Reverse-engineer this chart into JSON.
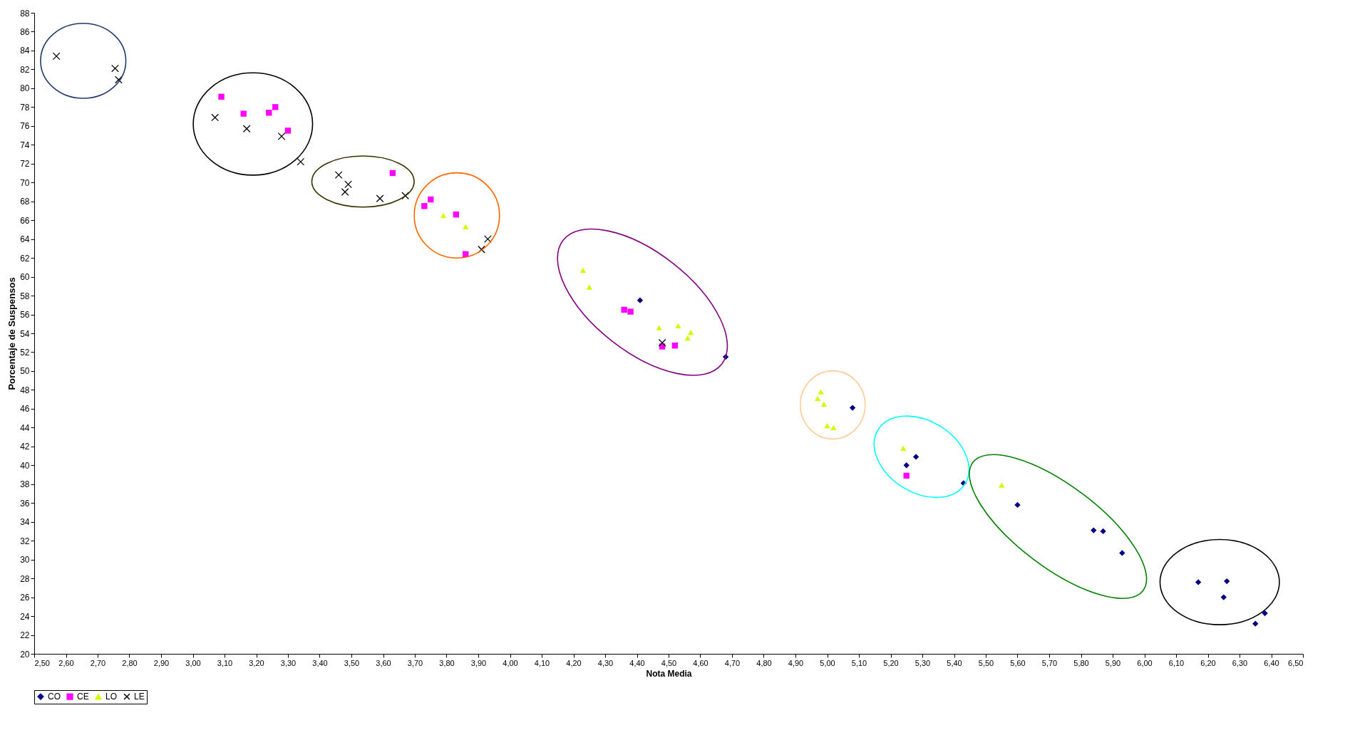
{
  "chart_data": {
    "type": "scatter",
    "xlabel": "Nota Media",
    "ylabel": "Porcentaje de Suspensos",
    "xlim": [
      2.5,
      6.5
    ],
    "xticks": [
      {
        "value": 2.5,
        "label": "2,50"
      },
      {
        "value": 2.6,
        "label": "2,60"
      },
      {
        "value": 2.7,
        "label": "2,70"
      },
      {
        "value": 2.8,
        "label": "2,80"
      },
      {
        "value": 2.9,
        "label": "2,90"
      },
      {
        "value": 3.0,
        "label": "3,00"
      },
      {
        "value": 3.1,
        "label": "3,10"
      },
      {
        "value": 3.2,
        "label": "3,20"
      },
      {
        "value": 3.3,
        "label": "3,30"
      },
      {
        "value": 3.4,
        "label": "3,40"
      },
      {
        "value": 3.5,
        "label": "3,50"
      },
      {
        "value": 3.6,
        "label": "3,60"
      },
      {
        "value": 3.7,
        "label": "3,70"
      },
      {
        "value": 3.8,
        "label": "3,80"
      },
      {
        "value": 3.9,
        "label": "3,90"
      },
      {
        "value": 4.0,
        "label": "4,00"
      },
      {
        "value": 4.1,
        "label": "4,10"
      },
      {
        "value": 4.2,
        "label": "4,20"
      },
      {
        "value": 4.3,
        "label": "4,30"
      },
      {
        "value": 4.4,
        "label": "4,40"
      },
      {
        "value": 4.5,
        "label": "4,50"
      },
      {
        "value": 4.6,
        "label": "4,60"
      },
      {
        "value": 4.7,
        "label": "4,70"
      },
      {
        "value": 4.8,
        "label": "4,80"
      },
      {
        "value": 4.9,
        "label": "4,90"
      },
      {
        "value": 5.0,
        "label": "5,00"
      },
      {
        "value": 5.1,
        "label": "5,10"
      },
      {
        "value": 5.2,
        "label": "5,20"
      },
      {
        "value": 5.3,
        "label": "5,30"
      },
      {
        "value": 5.4,
        "label": "5,40"
      },
      {
        "value": 5.5,
        "label": "5,50"
      },
      {
        "value": 5.6,
        "label": "5,60"
      },
      {
        "value": 5.7,
        "label": "5,70"
      },
      {
        "value": 5.8,
        "label": "5,80"
      },
      {
        "value": 5.9,
        "label": "5,90"
      },
      {
        "value": 6.0,
        "label": "6,00"
      },
      {
        "value": 6.1,
        "label": "6,10"
      },
      {
        "value": 6.2,
        "label": "6,20"
      },
      {
        "value": 6.3,
        "label": "6,30"
      },
      {
        "value": 6.4,
        "label": "6,40"
      },
      {
        "value": 6.5,
        "label": "6,50"
      }
    ],
    "ylim": [
      20,
      88
    ],
    "yticks": [
      20,
      22,
      24,
      26,
      28,
      30,
      32,
      34,
      36,
      38,
      40,
      42,
      44,
      46,
      48,
      50,
      52,
      54,
      56,
      58,
      60,
      62,
      64,
      66,
      68,
      70,
      72,
      74,
      76,
      78,
      80,
      82,
      84,
      86,
      88
    ],
    "grid": false,
    "legend": "bottom",
    "series": [
      {
        "name": "CO",
        "color": "#000080",
        "marker": "diamond",
        "x": [
          4.41,
          4.68,
          5.08,
          5.28,
          5.25,
          5.43,
          5.6,
          5.84,
          5.87,
          5.93,
          6.17,
          6.26,
          6.25,
          6.38,
          6.35
        ],
        "values": [
          57.5,
          51.5,
          46.1,
          40.9,
          40.0,
          38.1,
          35.8,
          33.1,
          33.0,
          30.7,
          27.6,
          27.7,
          26.0,
          24.3,
          23.2
        ]
      },
      {
        "name": "CE",
        "color": "#ff00ff",
        "marker": "square",
        "x": [
          3.09,
          3.16,
          3.24,
          3.26,
          3.3,
          3.63,
          3.75,
          3.73,
          3.83,
          3.86,
          4.36,
          4.38,
          4.48,
          4.52,
          5.25
        ],
        "values": [
          79.1,
          77.3,
          77.4,
          78.0,
          75.5,
          71.0,
          68.2,
          67.5,
          66.6,
          62.4,
          56.5,
          56.3,
          52.6,
          52.7,
          38.9
        ]
      },
      {
        "name": "LO",
        "color": "#ccff00",
        "marker": "triangle",
        "x": [
          3.79,
          3.86,
          4.23,
          4.25,
          4.47,
          4.53,
          4.57,
          4.56,
          4.98,
          4.97,
          4.99,
          5.0,
          5.02,
          5.24,
          5.55
        ],
        "values": [
          66.5,
          65.3,
          60.7,
          58.9,
          54.6,
          54.8,
          54.1,
          53.5,
          47.8,
          47.1,
          46.5,
          44.2,
          44.0,
          41.8,
          37.9
        ]
      },
      {
        "name": "LE",
        "color": "#000000",
        "marker": "cross",
        "x": [
          2.57,
          2.755,
          2.766,
          3.07,
          3.17,
          3.28,
          3.34,
          3.46,
          3.49,
          3.48,
          3.59,
          3.67,
          3.91,
          3.93,
          4.48
        ],
        "values": [
          83.4,
          82.1,
          80.9,
          76.9,
          75.7,
          74.9,
          72.2,
          70.8,
          69.8,
          69.0,
          68.3,
          68.6,
          62.9,
          64.0,
          53.0
        ]
      }
    ]
  }
}
